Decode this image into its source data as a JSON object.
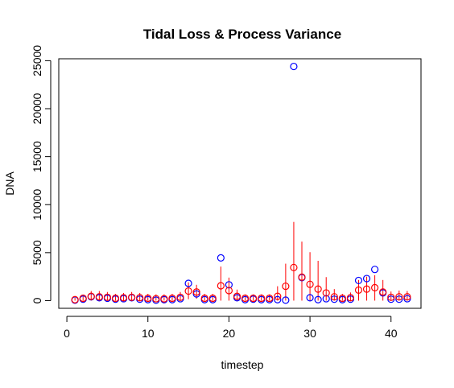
{
  "chart_data": {
    "type": "scatter",
    "title": "Tidal Loss & Process Variance",
    "xlabel": "timestep",
    "ylabel": "DNA",
    "xlim": [
      -1,
      43.7
    ],
    "ylim": [
      -800,
      25200
    ],
    "x_ticks": [
      0,
      10,
      20,
      30,
      40
    ],
    "y_ticks": [
      0,
      5000,
      10000,
      15000,
      20000,
      25000
    ],
    "grid": false,
    "legend": "none",
    "x": [
      1,
      2,
      3,
      4,
      5,
      6,
      7,
      8,
      9,
      10,
      11,
      12,
      13,
      14,
      15,
      16,
      17,
      18,
      19,
      20,
      21,
      22,
      23,
      24,
      25,
      26,
      27,
      28,
      29,
      30,
      31,
      32,
      33,
      34,
      35,
      36,
      37,
      38,
      39,
      40,
      41,
      42
    ],
    "series": [
      {
        "marker": "circle",
        "color": "#0000ff",
        "values": [
          50,
          150,
          400,
          300,
          250,
          150,
          200,
          300,
          150,
          100,
          50,
          100,
          100,
          200,
          1800,
          700,
          100,
          100,
          4450,
          1650,
          300,
          100,
          150,
          100,
          100,
          100,
          50,
          24400,
          2400,
          300,
          100,
          200,
          150,
          100,
          150,
          2100,
          2300,
          3250,
          800,
          150,
          150,
          200
        ]
      },
      {
        "marker": "circle",
        "color": "#ff0000",
        "values": [
          100,
          250,
          450,
          400,
          350,
          250,
          300,
          350,
          300,
          250,
          200,
          200,
          250,
          350,
          1000,
          900,
          250,
          250,
          1550,
          1050,
          450,
          250,
          250,
          250,
          250,
          450,
          1500,
          3450,
          2450,
          1700,
          1200,
          800,
          400,
          250,
          300,
          1100,
          1200,
          1350,
          900,
          350,
          400,
          400
        ],
        "error_bars": [
          [
            0,
            300
          ],
          [
            0,
            600
          ],
          [
            0,
            1000
          ],
          [
            0,
            1000
          ],
          [
            0,
            900
          ],
          [
            0,
            700
          ],
          [
            0,
            800
          ],
          [
            0,
            900
          ],
          [
            0,
            800
          ],
          [
            0,
            700
          ],
          [
            0,
            650
          ],
          [
            0,
            650
          ],
          [
            0,
            700
          ],
          [
            0,
            900
          ],
          [
            150,
            1900
          ],
          [
            200,
            1650
          ],
          [
            0,
            700
          ],
          [
            0,
            700
          ],
          [
            0,
            3550
          ],
          [
            0,
            2400
          ],
          [
            0,
            1150
          ],
          [
            0,
            650
          ],
          [
            0,
            650
          ],
          [
            0,
            650
          ],
          [
            0,
            650
          ],
          [
            0,
            1500
          ],
          [
            0,
            3850
          ],
          [
            0,
            8200
          ],
          [
            0,
            6150
          ],
          [
            0,
            5050
          ],
          [
            0,
            4150
          ],
          [
            0,
            2450
          ],
          [
            0,
            1200
          ],
          [
            0,
            700
          ],
          [
            0,
            850
          ],
          [
            0,
            2150
          ],
          [
            0,
            2500
          ],
          [
            0,
            2650
          ],
          [
            0,
            2150
          ],
          [
            0,
            950
          ],
          [
            0,
            1050
          ],
          [
            0,
            1000
          ]
        ],
        "error_color": "#ff0000"
      }
    ]
  }
}
